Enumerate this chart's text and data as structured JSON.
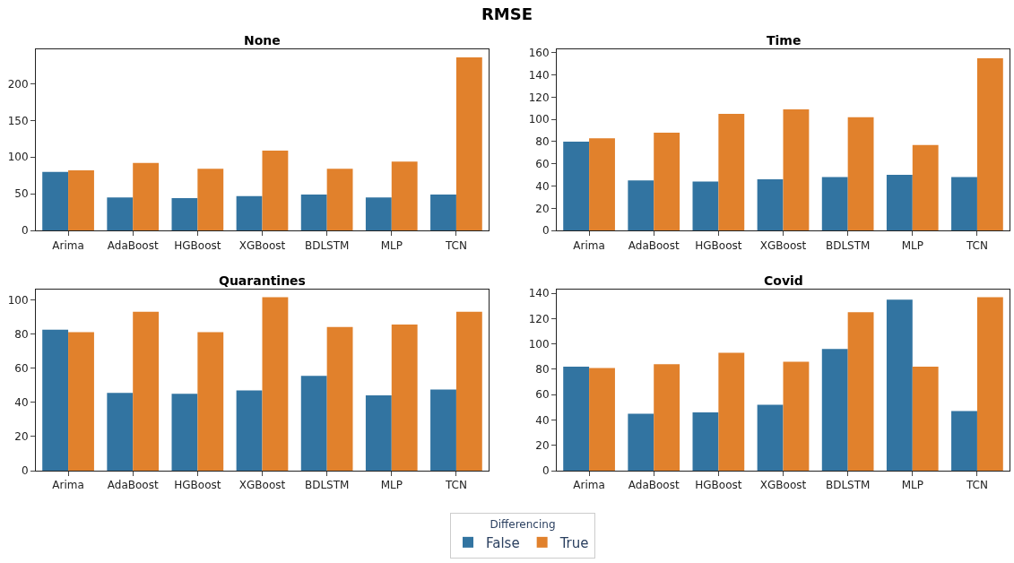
{
  "chart_data": [
    {
      "type": "bar",
      "title": "None",
      "annotations": [
        "RMSE"
      ],
      "categories": [
        "Arima",
        "AdaBoost",
        "HGBoost",
        "XGBoost",
        "BDLSTM",
        "MLP",
        "TCN"
      ],
      "ylim": [
        0,
        247
      ],
      "yticks": [
        0,
        50,
        100,
        150,
        200
      ],
      "legend": "bottom",
      "legend_title": "Differencing",
      "series": [
        {
          "name": "False",
          "color": "#3274a1",
          "values": [
            80,
            45,
            44,
            47,
            49,
            45,
            49
          ]
        },
        {
          "name": "True",
          "color": "#e1812c",
          "values": [
            82,
            92,
            84,
            109,
            84,
            94,
            236
          ]
        }
      ]
    },
    {
      "type": "bar",
      "title": "Time",
      "categories": [
        "Arima",
        "AdaBoost",
        "HGBoost",
        "XGBoost",
        "BDLSTM",
        "MLP",
        "TCN"
      ],
      "ylim": [
        0,
        163
      ],
      "yticks": [
        0,
        20,
        40,
        60,
        80,
        100,
        120,
        140,
        160
      ],
      "series": [
        {
          "color": "#3274a1",
          "values": [
            80,
            45,
            44,
            46,
            48,
            50,
            48
          ]
        },
        {
          "color": "#e1812c",
          "values": [
            83,
            88,
            105,
            109,
            102,
            77,
            155
          ]
        }
      ]
    },
    {
      "type": "bar",
      "title": "Quarantines",
      "categories": [
        "Arima",
        "AdaBoost",
        "HGBoost",
        "XGBoost",
        "BDLSTM",
        "MLP",
        "TCN"
      ],
      "ylim": [
        0,
        106
      ],
      "yticks": [
        0,
        20,
        40,
        60,
        80,
        100
      ],
      "series": [
        {
          "color": "#3274a1",
          "values": [
            82.5,
            45.5,
            45,
            47,
            55.5,
            44,
            47.5
          ]
        },
        {
          "color": "#e1812c",
          "values": [
            81,
            93,
            81,
            101.5,
            84,
            85.5,
            93
          ]
        }
      ]
    },
    {
      "type": "bar",
      "title": "Covid",
      "categories": [
        "Arima",
        "AdaBoost",
        "HGBoost",
        "XGBoost",
        "BDLSTM",
        "MLP",
        "TCN"
      ],
      "ylim": [
        0,
        143
      ],
      "yticks": [
        0,
        20,
        40,
        60,
        80,
        100,
        120,
        140
      ],
      "series": [
        {
          "color": "#3274a1",
          "values": [
            82,
            45,
            46,
            52,
            96,
            135,
            47
          ]
        },
        {
          "color": "#e1812c",
          "values": [
            81,
            84,
            93,
            86,
            125,
            82,
            137
          ]
        }
      ]
    }
  ]
}
